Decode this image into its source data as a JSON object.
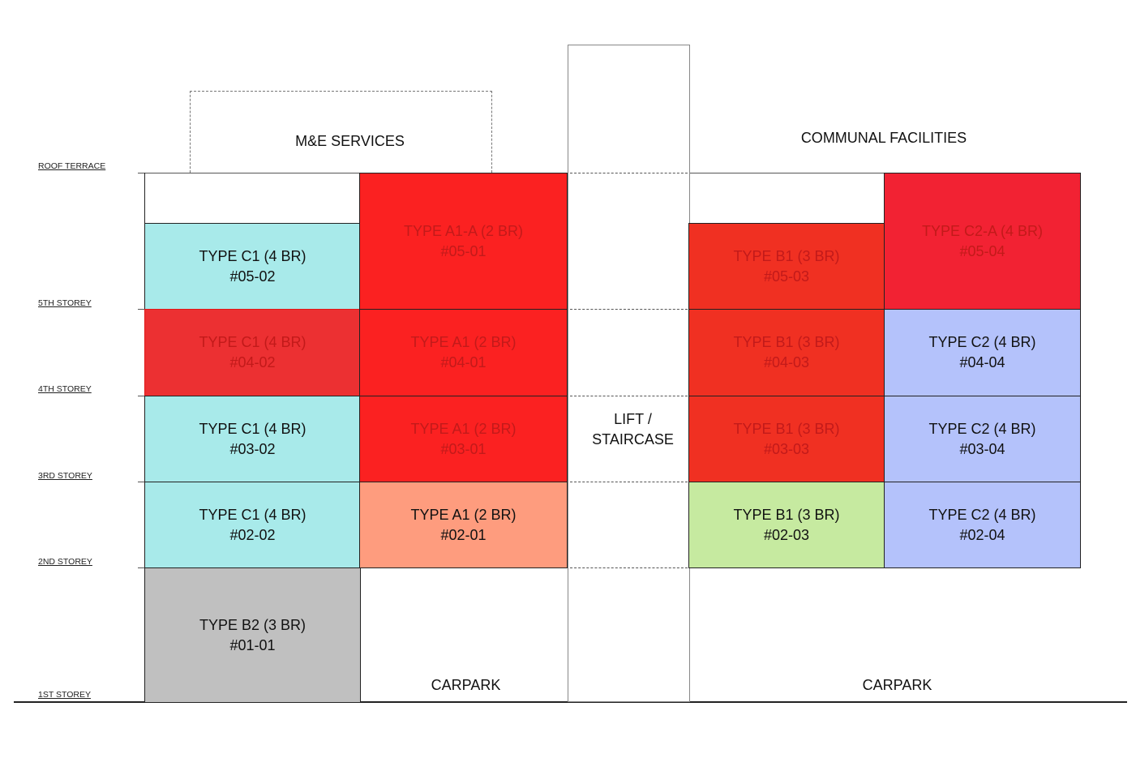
{
  "floors": {
    "roof": "ROOF TERRACE",
    "s5": "5TH STOREY",
    "s4": "4TH STOREY",
    "s3": "3RD STOREY",
    "s2": "2ND STOREY",
    "s1": "1ST STOREY"
  },
  "zones": {
    "me_services": "M&E SERVICES",
    "communal": "COMMUNAL FACILITIES",
    "lift_line1": "LIFT /",
    "lift_line2": "STAIRCASE",
    "carpark_left": "CARPARK",
    "carpark_right": "CARPARK"
  },
  "units": {
    "u0502": {
      "type": "TYPE C1 (4 BR)",
      "no": "#05-02",
      "color": "#a8eaea",
      "status": "available"
    },
    "u0501": {
      "type": "TYPE A1-A (2 BR)",
      "no": "#05-01",
      "color": "#fb2121",
      "status": "sold"
    },
    "u0503": {
      "type": "TYPE B1 (3 BR)",
      "no": "#05-03",
      "color": "#f03022",
      "status": "sold"
    },
    "u0504": {
      "type": "TYPE C2-A (4 BR)",
      "no": "#05-04",
      "color": "#f22233",
      "status": "sold"
    },
    "u0402": {
      "type": "TYPE C1 (4 BR)",
      "no": "#04-02",
      "color": "#ec3032",
      "status": "sold"
    },
    "u0401": {
      "type": "TYPE A1 (2 BR)",
      "no": "#04-01",
      "color": "#fb2121",
      "status": "sold"
    },
    "u0403": {
      "type": "TYPE B1 (3 BR)",
      "no": "#04-03",
      "color": "#f03022",
      "status": "sold"
    },
    "u0404": {
      "type": "TYPE C2 (4 BR)",
      "no": "#04-04",
      "color": "#b4c2fb",
      "status": "available"
    },
    "u0302": {
      "type": "TYPE C1 (4 BR)",
      "no": "#03-02",
      "color": "#a8eaea",
      "status": "available"
    },
    "u0301": {
      "type": "TYPE A1 (2 BR)",
      "no": "#03-01",
      "color": "#fb2121",
      "status": "sold"
    },
    "u0303": {
      "type": "TYPE B1 (3 BR)",
      "no": "#03-03",
      "color": "#f03022",
      "status": "sold"
    },
    "u0304": {
      "type": "TYPE C2 (4 BR)",
      "no": "#03-04",
      "color": "#b4c2fb",
      "status": "available"
    },
    "u0202": {
      "type": "TYPE C1 (4 BR)",
      "no": "#02-02",
      "color": "#a8eaea",
      "status": "available"
    },
    "u0201": {
      "type": "TYPE A1 (2 BR)",
      "no": "#02-01",
      "color": "#fe9c7e",
      "status": "available"
    },
    "u0203": {
      "type": "TYPE B1 (3 BR)",
      "no": "#02-03",
      "color": "#c6eaa0",
      "status": "available"
    },
    "u0204": {
      "type": "TYPE C2 (4 BR)",
      "no": "#02-04",
      "color": "#b4c2fb",
      "status": "available"
    },
    "u0101": {
      "type": "TYPE B2 (3 BR)",
      "no": "#01-01",
      "color": "#c0c0c0",
      "status": "available"
    }
  }
}
